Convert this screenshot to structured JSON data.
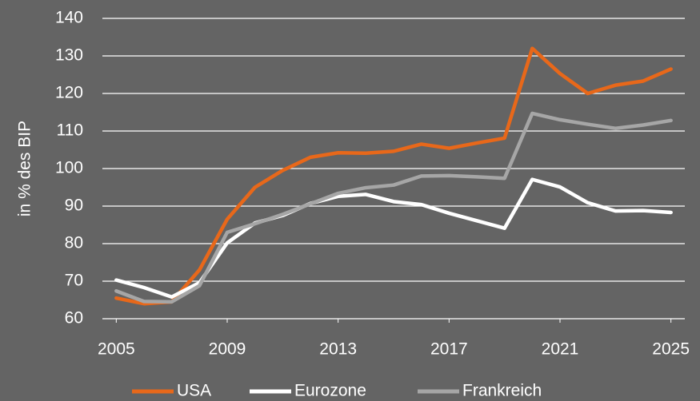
{
  "chart_data": {
    "type": "line",
    "y_label": "in % des BIP",
    "x": [
      2005,
      2006,
      2007,
      2008,
      2009,
      2010,
      2011,
      2012,
      2013,
      2014,
      2015,
      2016,
      2017,
      2018,
      2019,
      2020,
      2021,
      2022,
      2023,
      2024,
      2025
    ],
    "series": [
      {
        "name": "USA",
        "color": "#e8681a",
        "values": [
          65.5,
          64,
          64.5,
          73,
          86.5,
          95,
          99.5,
          103,
          104.2,
          104.1,
          104.6,
          106.5,
          105.4,
          106.8,
          108.1,
          132,
          125.3,
          120,
          122.2,
          123.3,
          126.5
        ]
      },
      {
        "name": "Eurozone",
        "color": "#ffffff",
        "values": [
          70.3,
          68.3,
          65.8,
          69.6,
          80.2,
          85.5,
          87.5,
          90.7,
          92.6,
          93.1,
          91.2,
          90.4,
          88.1,
          86.1,
          84.1,
          97.1,
          95.1,
          90.9,
          88.7,
          88.8,
          88.3
        ]
      },
      {
        "name": "Frankreich",
        "color": "#a6a6a6",
        "values": [
          67.4,
          64.6,
          64.5,
          68.8,
          83.0,
          85.3,
          87.8,
          90.6,
          93.4,
          94.9,
          95.6,
          98.0,
          98.1,
          97.8,
          97.4,
          114.7,
          113.0,
          111.8,
          110.7,
          111.6,
          112.8
        ]
      }
    ],
    "xlim": [
      2004.5,
      2025.5
    ],
    "xticks": [
      2005,
      2009,
      2013,
      2017,
      2021,
      2025
    ],
    "ylim": [
      60,
      140
    ],
    "yticks": [
      60,
      70,
      80,
      90,
      100,
      110,
      120,
      130,
      140
    ],
    "grid": true,
    "legend": "bottom"
  }
}
